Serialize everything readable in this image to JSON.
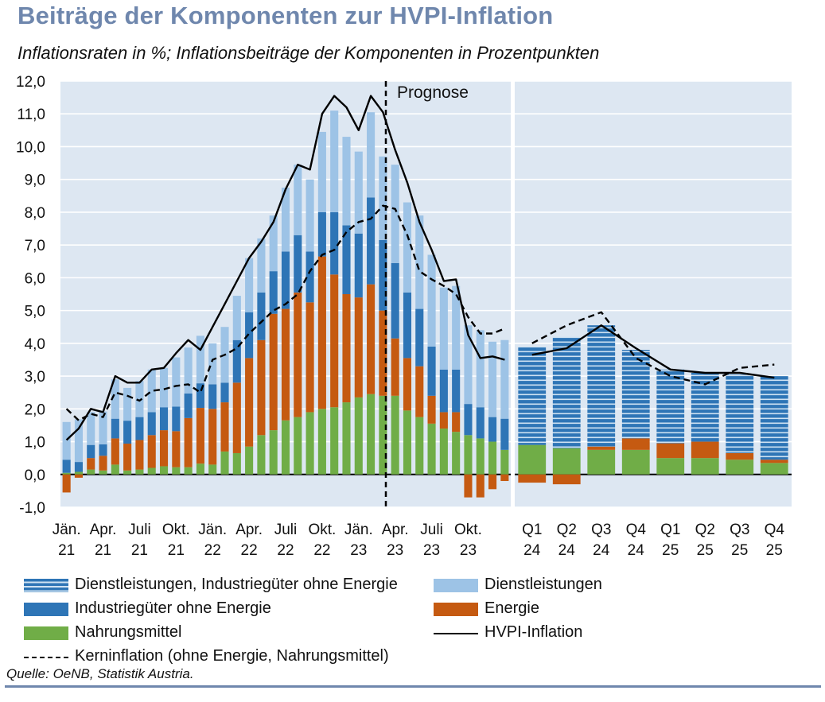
{
  "header": {
    "title": "Beiträge der Komponenten zur HVPI-Inflation",
    "subtitle": "Inflationsraten in %; Inflationsbeiträge der Komponenten in Prozentpunkten"
  },
  "source": "Quelle: OeNB, Statistik Austria.",
  "chart_data": {
    "type": "bar",
    "stacked": true,
    "ylim": [
      -1,
      12
    ],
    "yticks": [
      "12,0",
      "11,0",
      "10,0",
      "9,0",
      "8,0",
      "7,0",
      "6,0",
      "5,0",
      "4,0",
      "3,0",
      "2,0",
      "1,0",
      "0,0",
      "-1,0"
    ],
    "grid": true,
    "legend_position": "bottom",
    "annotation": "Prognose",
    "monthly": {
      "x_labels": [
        [
          "Jän.",
          "21"
        ],
        [
          "Apr.",
          "21"
        ],
        [
          "Juli",
          "21"
        ],
        [
          "Okt.",
          "21"
        ],
        [
          "Jän.",
          "22"
        ],
        [
          "Apr.",
          "22"
        ],
        [
          "Juli",
          "22"
        ],
        [
          "Okt.",
          "22"
        ],
        [
          "Jän.",
          "23"
        ],
        [
          "Apr.",
          "23"
        ],
        [
          "Juli",
          "23"
        ],
        [
          "Okt.",
          "23"
        ]
      ],
      "series": [
        {
          "name": "Nahrungsmittel",
          "color": "#70ad47",
          "values": [
            0.05,
            0.08,
            0.15,
            0.12,
            0.3,
            0.12,
            0.15,
            0.2,
            0.25,
            0.22,
            0.22,
            0.33,
            0.3,
            0.7,
            0.65,
            0.85,
            1.2,
            1.35,
            1.65,
            1.75,
            1.9,
            2.0,
            2.05,
            2.2,
            2.35,
            2.45,
            2.4,
            2.4,
            1.95,
            1.75,
            1.55,
            1.4,
            1.3,
            1.2,
            1.1,
            1.0,
            0.75
          ]
        },
        {
          "name": "Energie",
          "color": "#c55a11",
          "values": [
            -0.55,
            -0.1,
            0.35,
            0.45,
            0.8,
            0.82,
            0.9,
            1.0,
            1.1,
            1.1,
            1.5,
            1.7,
            1.7,
            1.5,
            2.15,
            2.7,
            2.9,
            3.55,
            3.4,
            3.8,
            3.35,
            4.65,
            4.05,
            3.3,
            3.05,
            3.35,
            2.6,
            1.75,
            1.6,
            1.55,
            0.85,
            0.5,
            0.6,
            -0.7,
            -0.7,
            -0.45,
            -0.2
          ]
        },
        {
          "name": "Industriegüter ohne Energie",
          "color": "#2e75b6",
          "values": [
            0.4,
            0.3,
            0.4,
            0.35,
            0.6,
            0.7,
            0.7,
            0.7,
            0.7,
            0.75,
            0.75,
            0.75,
            0.75,
            0.6,
            1.3,
            1.4,
            1.45,
            1.3,
            1.75,
            1.75,
            1.55,
            1.35,
            1.9,
            2.1,
            1.95,
            2.65,
            2.15,
            2.3,
            2.0,
            1.75,
            1.5,
            1.3,
            1.3,
            0.95,
            0.95,
            0.75,
            0.95
          ]
        },
        {
          "name": "Dienstleistungen",
          "color": "#9dc3e6",
          "values": [
            1.15,
            1.3,
            1.0,
            1.0,
            1.2,
            1.0,
            1.1,
            1.3,
            1.2,
            1.5,
            1.4,
            1.45,
            1.25,
            1.7,
            1.35,
            1.65,
            1.65,
            1.7,
            1.95,
            2.15,
            2.2,
            2.45,
            3.1,
            2.7,
            2.5,
            2.6,
            2.55,
            3.0,
            2.75,
            2.85,
            2.8,
            2.5,
            2.55,
            2.4,
            2.35,
            2.3,
            2.4
          ]
        },
        {
          "name": "HVPI-Inflation",
          "color": "#000000",
          "line": "solid",
          "values": [
            1.05,
            1.4,
            2.0,
            1.9,
            3.0,
            2.8,
            2.8,
            3.2,
            3.25,
            3.7,
            4.1,
            3.8,
            4.5,
            5.2,
            5.9,
            6.6,
            7.1,
            7.7,
            8.7,
            9.45,
            9.3,
            11.0,
            11.55,
            11.2,
            10.5,
            11.55,
            11.05,
            9.9,
            8.9,
            7.7,
            6.85,
            5.9,
            5.95,
            4.25,
            3.55,
            3.6,
            3.5
          ]
        },
        {
          "name": "Kerninflation (ohne Energie, Nahrungsmittel)",
          "color": "#000000",
          "line": "dashed",
          "values": [
            2.0,
            1.65,
            1.85,
            1.75,
            2.5,
            2.4,
            2.25,
            2.55,
            2.6,
            2.7,
            2.75,
            2.5,
            3.5,
            3.65,
            3.85,
            4.3,
            4.65,
            5.0,
            5.2,
            5.5,
            6.2,
            6.7,
            6.85,
            7.4,
            7.7,
            7.8,
            8.2,
            8.1,
            7.3,
            6.2,
            5.95,
            5.75,
            5.5,
            4.8,
            4.3,
            4.3,
            4.45
          ]
        }
      ]
    },
    "quarterly": {
      "x_labels": [
        [
          "Q1",
          "24"
        ],
        [
          "Q2",
          "24"
        ],
        [
          "Q3",
          "24"
        ],
        [
          "Q4",
          "24"
        ],
        [
          "Q1",
          "25"
        ],
        [
          "Q2",
          "25"
        ],
        [
          "Q3",
          "25"
        ],
        [
          "Q4",
          "25"
        ]
      ],
      "series": [
        {
          "name": "Nahrungsmittel",
          "color": "#70ad47",
          "values": [
            0.9,
            0.8,
            0.75,
            0.75,
            0.5,
            0.5,
            0.45,
            0.35
          ]
        },
        {
          "name": "Energie",
          "color": "#c55a11",
          "values": [
            -0.25,
            -0.3,
            0.1,
            0.35,
            0.45,
            0.5,
            0.2,
            0.1
          ]
        },
        {
          "name": "Dienstleistungen, Industriegüter ohne Energie",
          "color": "#2e75b6",
          "pattern": "striped",
          "values": [
            3.0,
            3.4,
            3.7,
            2.7,
            2.25,
            2.1,
            2.4,
            2.55
          ]
        },
        {
          "name": "HVPI-Inflation",
          "color": "#000000",
          "line": "solid",
          "values": [
            3.65,
            3.85,
            4.55,
            3.85,
            3.2,
            3.1,
            3.1,
            2.95
          ]
        },
        {
          "name": "Kerninflation (ohne Energie, Nahrungsmittel)",
          "color": "#000000",
          "line": "dashed",
          "values": [
            4.0,
            4.55,
            4.95,
            3.55,
            3.0,
            2.75,
            3.25,
            3.35
          ]
        }
      ]
    }
  },
  "legend": [
    {
      "label": "Dienstleistungen, Industriegüter ohne Energie",
      "swatch": "striped",
      "color": "#2e75b6"
    },
    {
      "label": "Dienstleistungen",
      "swatch": "fill",
      "color": "#9dc3e6"
    },
    {
      "label": "Industriegüter ohne Energie",
      "swatch": "fill",
      "color": "#2e75b6"
    },
    {
      "label": "Energie",
      "swatch": "fill",
      "color": "#c55a11"
    },
    {
      "label": "Nahrungsmittel",
      "swatch": "fill",
      "color": "#70ad47"
    },
    {
      "label": "HVPI-Inflation",
      "swatch": "line",
      "color": "#000000"
    },
    {
      "label": "Kerninflation (ohne Energie, Nahrungsmittel)",
      "swatch": "dashed",
      "color": "#000000"
    }
  ]
}
